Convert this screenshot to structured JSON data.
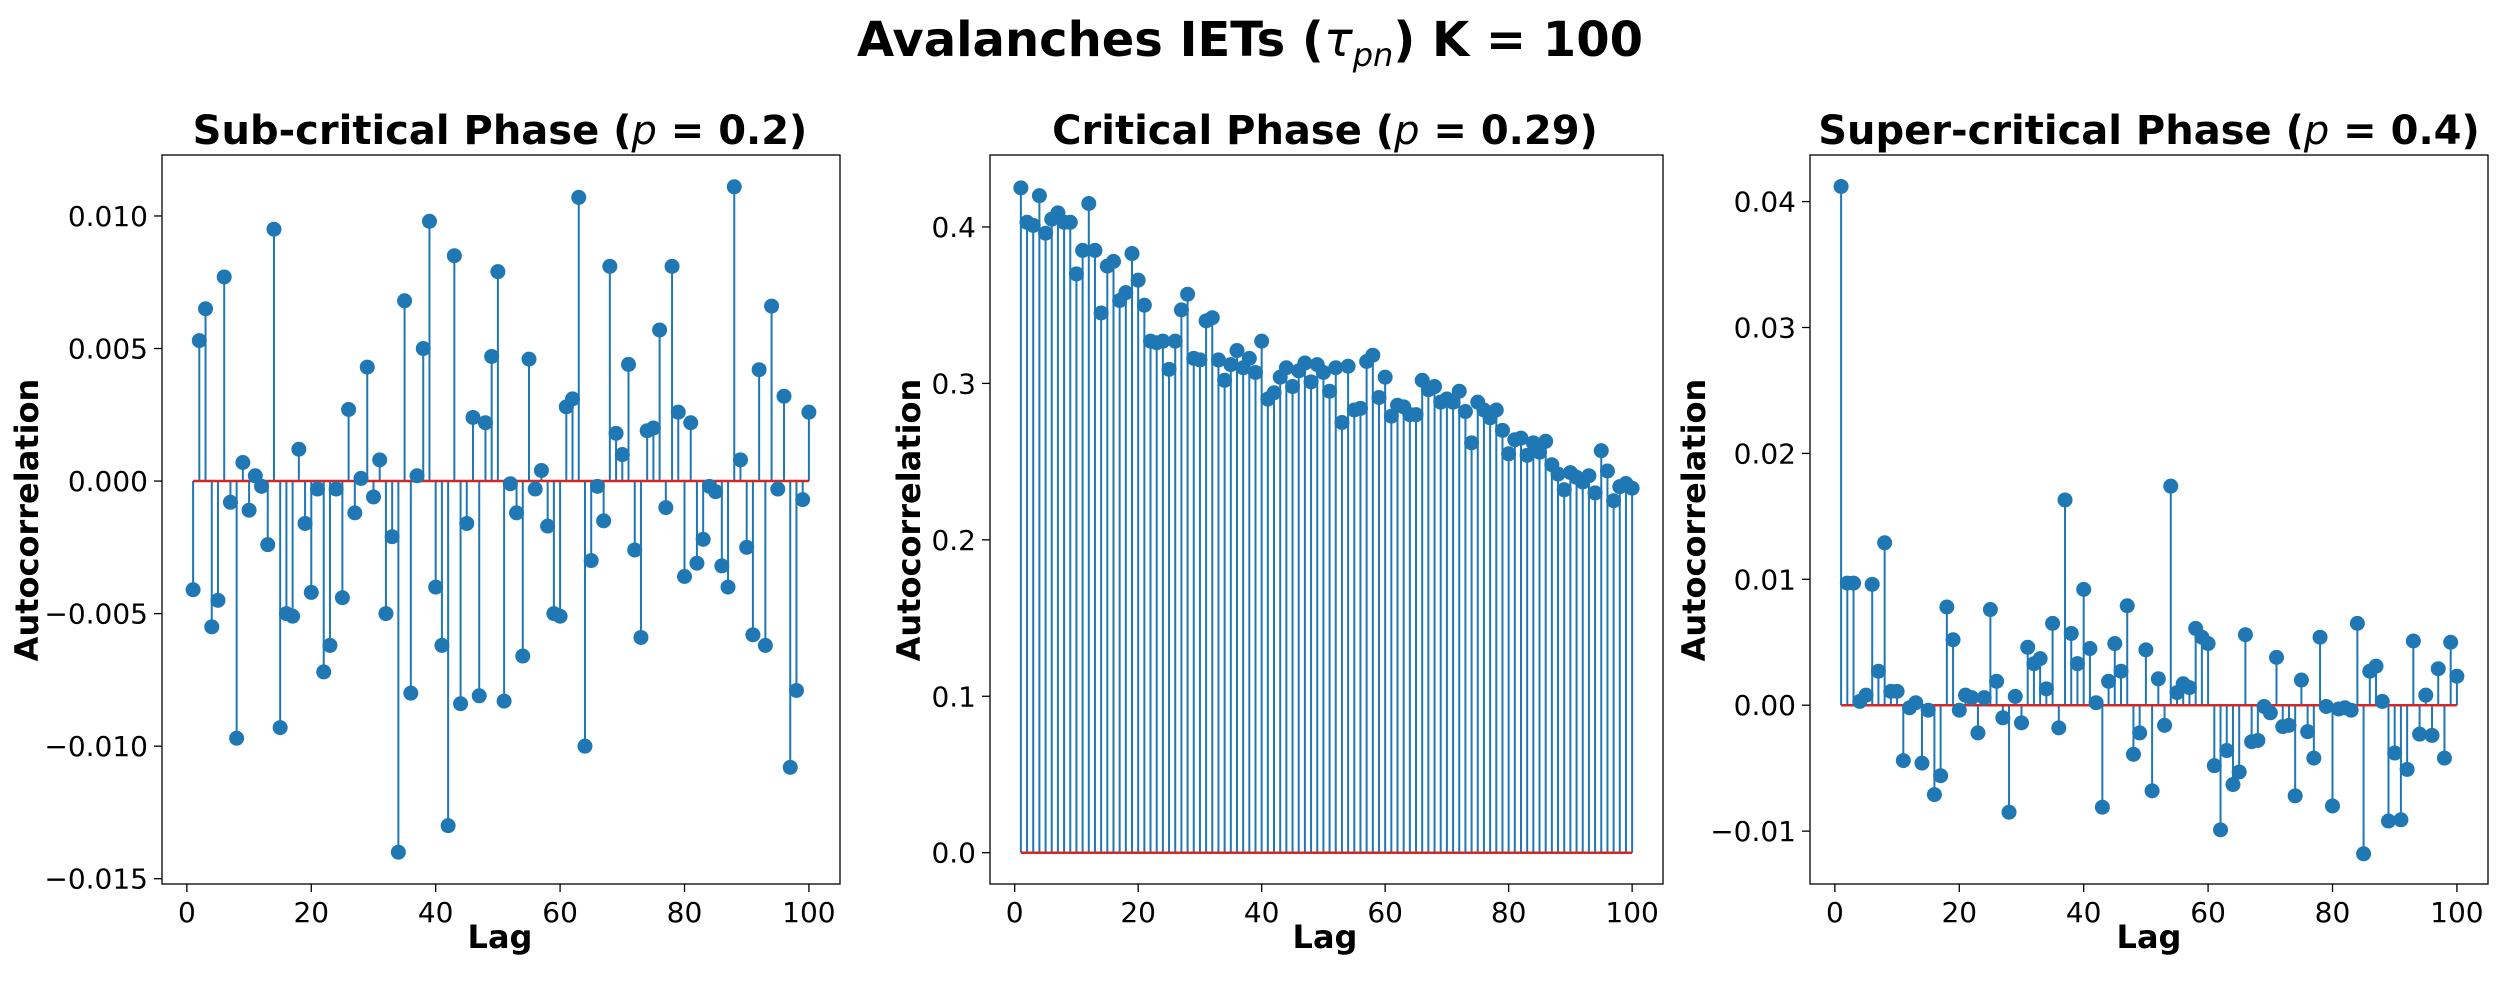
{
  "figure": {
    "suptitle": "Avalanches IETs (τpn) K = 100",
    "suptitle_parts": {
      "pre": "Avalanches IETs (",
      "sym": "τ",
      "sub": "pn",
      "post": ") K = 100"
    }
  },
  "colors": {
    "stem": "#1f77b4",
    "baseline": "#d62728",
    "frame": "#000000"
  },
  "chart_data": [
    {
      "type": "stem",
      "title": "Sub-critical Phase (p = 0.2)",
      "title_parts": {
        "pre": "Sub-critical Phase (",
        "var": "p",
        "post": " = 0.2)"
      },
      "xlabel": "Lag",
      "ylabel": "Autocorrelation",
      "xlim": [
        -4,
        105
      ],
      "ylim": [
        -0.0152,
        0.0123
      ],
      "xticks": [
        0,
        20,
        40,
        60,
        80,
        100
      ],
      "xtick_labels": [
        "0",
        "20",
        "40",
        "60",
        "80",
        "100"
      ],
      "yticks": [
        -0.015,
        -0.01,
        -0.005,
        0.0,
        0.005,
        0.01
      ],
      "ytick_labels": [
        "−0.015",
        "−0.010",
        "−0.005",
        "0.000",
        "0.005",
        "0.010"
      ],
      "baseline": 0,
      "x_start": 1,
      "values": [
        -0.0041,
        0.0053,
        0.0065,
        -0.0055,
        -0.0045,
        0.0077,
        -0.0008,
        -0.0097,
        0.0007,
        -0.0011,
        0.0002,
        -0.0002,
        -0.0024,
        0.0095,
        -0.0093,
        -0.005,
        -0.0051,
        0.0012,
        -0.0016,
        -0.0042,
        -0.0003,
        -0.0072,
        -0.0062,
        -0.0003,
        -0.0044,
        0.0027,
        -0.0012,
        0.0001,
        0.0043,
        -0.0006,
        0.0008,
        -0.005,
        -0.0021,
        -0.014,
        0.0068,
        -0.008,
        0.0002,
        0.005,
        0.0098,
        -0.004,
        -0.0062,
        -0.013,
        0.0085,
        -0.0084,
        -0.0016,
        0.0024,
        -0.0081,
        0.0022,
        0.0047,
        0.0079,
        -0.0083,
        -0.0001,
        -0.0012,
        -0.0066,
        0.0046,
        -0.0003,
        0.0004,
        -0.0017,
        -0.005,
        -0.0051,
        0.0028,
        0.0031,
        0.0107,
        -0.01,
        -0.003,
        -0.0002,
        -0.0015,
        0.0081,
        0.0018,
        0.001,
        0.0044,
        -0.0026,
        -0.0059,
        0.0019,
        0.002,
        0.0057,
        -0.001,
        0.0081,
        0.0026,
        -0.0036,
        0.0022,
        -0.0031,
        -0.0022,
        -0.0002,
        -0.0004,
        -0.0032,
        -0.004,
        0.0111,
        0.0008,
        -0.0025,
        -0.0058,
        0.0042,
        -0.0062,
        0.0066,
        -0.0003,
        0.0032,
        -0.0108,
        -0.0079,
        -0.0007,
        0.0026
      ]
    },
    {
      "type": "stem",
      "title": "Critical Phase (p = 0.29)",
      "title_parts": {
        "pre": "Critical Phase (",
        "var": "p",
        "post": " = 0.29)"
      },
      "xlabel": "Lag",
      "ylabel": "Autocorrelation",
      "xlim": [
        -4,
        105
      ],
      "ylim": [
        -0.02,
        0.446
      ],
      "xticks": [
        0,
        20,
        40,
        60,
        80,
        100
      ],
      "xtick_labels": [
        "0",
        "20",
        "40",
        "60",
        "80",
        "100"
      ],
      "yticks": [
        0.0,
        0.1,
        0.2,
        0.3,
        0.4
      ],
      "ytick_labels": [
        "0.0",
        "0.1",
        "0.2",
        "0.3",
        "0.4"
      ],
      "baseline": 0,
      "x_start": 1,
      "values": [
        0.425,
        0.403,
        0.401,
        0.42,
        0.396,
        0.405,
        0.409,
        0.403,
        0.403,
        0.37,
        0.385,
        0.415,
        0.385,
        0.345,
        0.375,
        0.378,
        0.353,
        0.358,
        0.383,
        0.366,
        0.35,
        0.327,
        0.326,
        0.327,
        0.309,
        0.327,
        0.347,
        0.357,
        0.316,
        0.315,
        0.34,
        0.342,
        0.315,
        0.302,
        0.312,
        0.321,
        0.31,
        0.316,
        0.307,
        0.327,
        0.29,
        0.294,
        0.304,
        0.31,
        0.298,
        0.308,
        0.313,
        0.301,
        0.312,
        0.307,
        0.295,
        0.31,
        0.275,
        0.311,
        0.283,
        0.284,
        0.314,
        0.318,
        0.291,
        0.304,
        0.279,
        0.286,
        0.285,
        0.28,
        0.28,
        0.302,
        0.296,
        0.298,
        0.288,
        0.29,
        0.288,
        0.295,
        0.282,
        0.262,
        0.288,
        0.283,
        0.278,
        0.283,
        0.27,
        0.255,
        0.264,
        0.265,
        0.254,
        0.262,
        0.256,
        0.263,
        0.248,
        0.242,
        0.232,
        0.243,
        0.24,
        0.237,
        0.241,
        0.23,
        0.257,
        0.244,
        0.225,
        0.234,
        0.236,
        0.233
      ]
    },
    {
      "type": "stem",
      "title": "Super-critical Phase (p = 0.4)",
      "title_parts": {
        "pre": "Super-critical Phase (",
        "var": "p",
        "post": " = 0.4)"
      },
      "xlabel": "Lag",
      "ylabel": "Autocorrelation",
      "xlim": [
        -4,
        105
      ],
      "ylim": [
        -0.0142,
        0.0437
      ],
      "xticks": [
        0,
        20,
        40,
        60,
        80,
        100
      ],
      "xtick_labels": [
        "0",
        "20",
        "40",
        "60",
        "80",
        "100"
      ],
      "yticks": [
        -0.01,
        0.0,
        0.01,
        0.02,
        0.03,
        0.04
      ],
      "ytick_labels": [
        "−0.01",
        "0.00",
        "0.01",
        "0.02",
        "0.03",
        "0.04"
      ],
      "baseline": 0,
      "x_start": 1,
      "values": [
        0.0412,
        0.0097,
        0.0097,
        0.0003,
        0.0008,
        0.0096,
        0.0027,
        0.0129,
        0.0011,
        0.0011,
        -0.0044,
        -0.0002,
        0.0002,
        -0.0046,
        -0.0004,
        -0.0071,
        -0.0056,
        0.0078,
        0.0052,
        -0.0004,
        0.0008,
        0.0006,
        -0.0022,
        0.0006,
        0.0076,
        0.0019,
        -0.001,
        -0.0085,
        0.0007,
        -0.0014,
        0.0046,
        0.0033,
        0.0037,
        0.0013,
        0.0065,
        -0.0018,
        0.0163,
        0.0057,
        0.0033,
        0.0092,
        0.0045,
        0.0002,
        -0.0081,
        0.0019,
        0.0049,
        0.0027,
        0.0079,
        -0.0039,
        -0.0022,
        0.0044,
        -0.0068,
        0.0021,
        -0.0016,
        0.0174,
        0.001,
        0.0017,
        0.0014,
        0.0061,
        0.0054,
        0.0049,
        -0.0048,
        -0.0099,
        -0.0036,
        -0.0063,
        -0.0053,
        0.0056,
        -0.0029,
        -0.0028,
        -0.0001,
        -0.0006,
        0.0038,
        -0.0017,
        -0.0016,
        -0.0072,
        0.002,
        -0.0021,
        -0.0042,
        0.0054,
        -0.0001,
        -0.008,
        -0.0003,
        -0.0002,
        -0.0004,
        0.0065,
        -0.0118,
        0.0027,
        0.0031,
        0.0003,
        -0.0092,
        -0.0038,
        -0.0091,
        -0.0051,
        0.0051,
        -0.0023,
        0.0008,
        -0.0024,
        0.0029,
        -0.0042,
        0.005,
        0.0023
      ]
    }
  ]
}
